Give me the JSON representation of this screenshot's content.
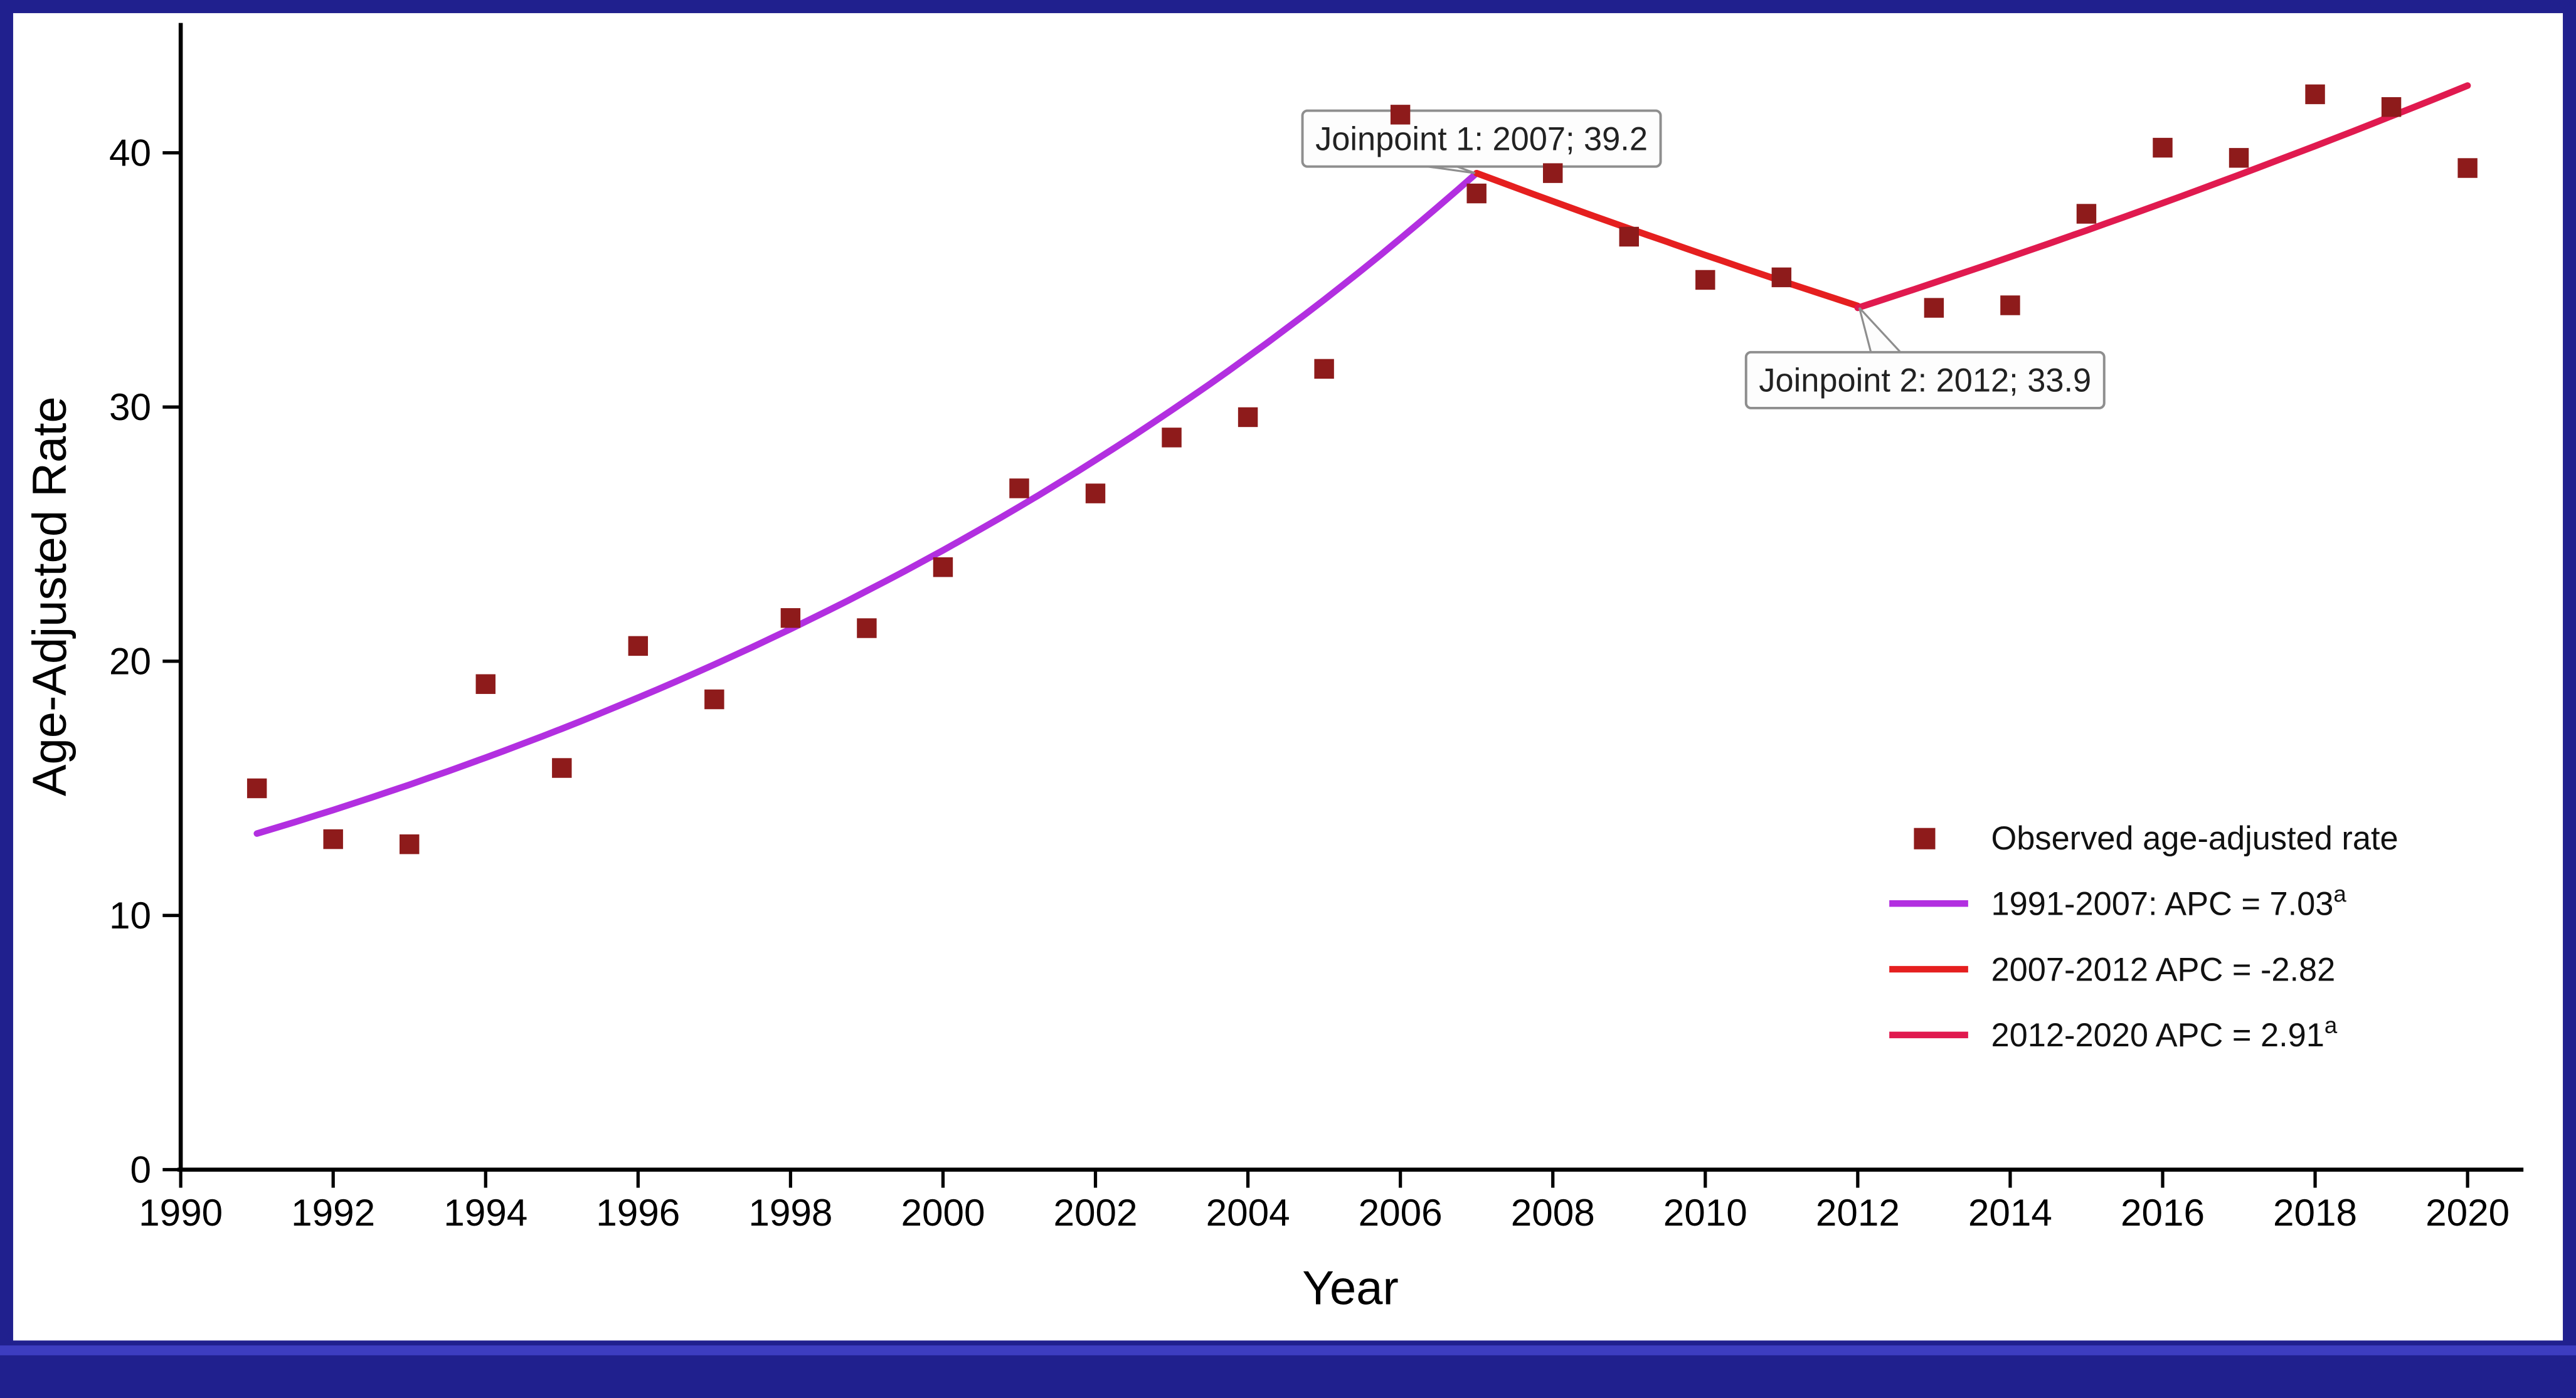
{
  "figure": {
    "background_color": "#20208e",
    "panel_color": "#ffffff",
    "bottom_stripe_color": "#3d3dc0"
  },
  "chart_data": {
    "type": "line",
    "title": "",
    "xlabel": "Year",
    "ylabel": "Age-Adjusted Rate",
    "xlim": [
      1990,
      2021
    ],
    "ylim": [
      0,
      45
    ],
    "grid": false,
    "legend_position": "lower right",
    "x_ticks": [
      1990,
      1992,
      1994,
      1996,
      1998,
      2000,
      2002,
      2004,
      2006,
      2008,
      2010,
      2012,
      2014,
      2016,
      2018,
      2020
    ],
    "y_ticks": [
      0,
      10,
      20,
      30,
      40
    ],
    "observed": {
      "label": "Observed age-adjusted rate",
      "marker": "square",
      "color": "#8e1b1b",
      "points": [
        [
          1991,
          15.0
        ],
        [
          1992,
          13.0
        ],
        [
          1993,
          12.8
        ],
        [
          1994,
          19.1
        ],
        [
          1995,
          15.8
        ],
        [
          1996,
          20.6
        ],
        [
          1997,
          18.5
        ],
        [
          1998,
          21.7
        ],
        [
          1999,
          21.3
        ],
        [
          2000,
          23.7
        ],
        [
          2001,
          26.8
        ],
        [
          2002,
          26.6
        ],
        [
          2003,
          28.8
        ],
        [
          2004,
          29.6
        ],
        [
          2005,
          31.5
        ],
        [
          2006,
          41.5
        ],
        [
          2007,
          38.4
        ],
        [
          2008,
          39.2
        ],
        [
          2009,
          36.7
        ],
        [
          2010,
          35.0
        ],
        [
          2011,
          35.1
        ],
        [
          2013,
          33.9
        ],
        [
          2014,
          34.0
        ],
        [
          2015,
          37.6
        ],
        [
          2016,
          40.2
        ],
        [
          2017,
          39.8
        ],
        [
          2018,
          42.3
        ],
        [
          2019,
          41.8
        ],
        [
          2020,
          39.4
        ]
      ]
    },
    "trend_segments": [
      {
        "label": "1991-2007: APC = 7.03",
        "superscript": "a",
        "color": "#b22fe0",
        "start_year": 1991,
        "end_year": 2007,
        "anchor_year": 2007,
        "anchor_value": 39.2,
        "apc": 7.03
      },
      {
        "label": "2007-2012 APC = -2.82",
        "color": "#e51f1f",
        "start_year": 2007,
        "end_year": 2012,
        "anchor_year": 2007,
        "anchor_value": 39.2,
        "apc": -2.82
      },
      {
        "label": "2012-2020 APC = 2.91",
        "superscript": "a",
        "color": "#e01a4f",
        "start_year": 2012,
        "end_year": 2020,
        "anchor_year": 2012,
        "anchor_value": 33.9,
        "apc": 2.91
      }
    ],
    "annotations": [
      {
        "label": "Joinpoint 1: 2007; 39.2",
        "year": 2007,
        "value": 39.2,
        "placement": "above-left"
      },
      {
        "label": "Joinpoint 2: 2012; 33.9",
        "year": 2012,
        "value": 33.9,
        "placement": "below-right"
      }
    ]
  }
}
